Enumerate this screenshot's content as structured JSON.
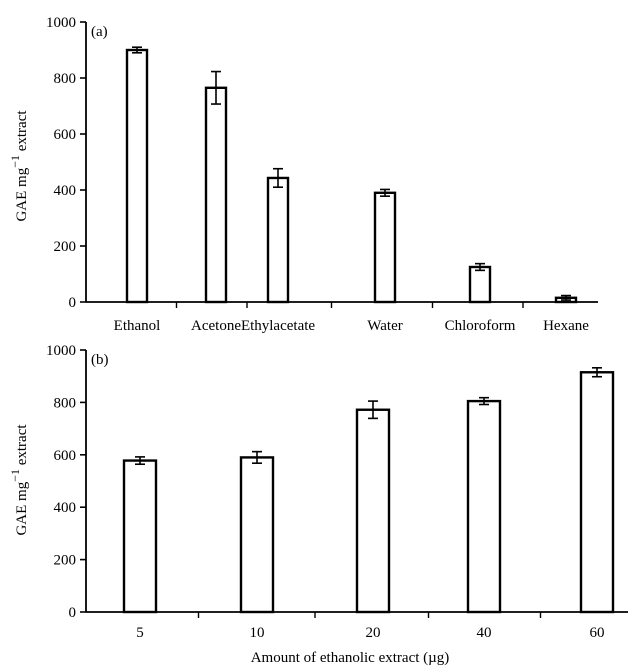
{
  "chart_data": [
    {
      "type": "bar",
      "panel_label": "(a)",
      "categories": [
        "Ethanol",
        "Acetone",
        "Ethylacetate",
        "Water",
        "Chloroform",
        "Hexane"
      ],
      "values": [
        900,
        765,
        443,
        390,
        125,
        15
      ],
      "errors": [
        10,
        58,
        33,
        12,
        12,
        8
      ],
      "ylabel_main": "GAE mg",
      "ylabel_sup": "−1",
      "ylabel_tail": " extract",
      "xlabel": "",
      "ylim": [
        0,
        1000
      ],
      "yticks": [
        0,
        200,
        400,
        600,
        800,
        1000
      ],
      "grid": false,
      "bar_fill": "#ffffff",
      "bar_stroke": "#000000"
    },
    {
      "type": "bar",
      "panel_label": "(b)",
      "categories": [
        "5",
        "10",
        "20",
        "40",
        "60"
      ],
      "values": [
        578,
        590,
        772,
        805,
        915
      ],
      "errors": [
        14,
        22,
        33,
        13,
        17
      ],
      "ylabel_main": "GAE mg",
      "ylabel_sup": "−1",
      "ylabel_tail": " extract",
      "xlabel": "Amount of ethanolic extract (µg)",
      "ylim": [
        0,
        1000
      ],
      "yticks": [
        0,
        200,
        400,
        600,
        800,
        1000
      ],
      "grid": false,
      "bar_fill": "#ffffff",
      "bar_stroke": "#000000"
    }
  ]
}
